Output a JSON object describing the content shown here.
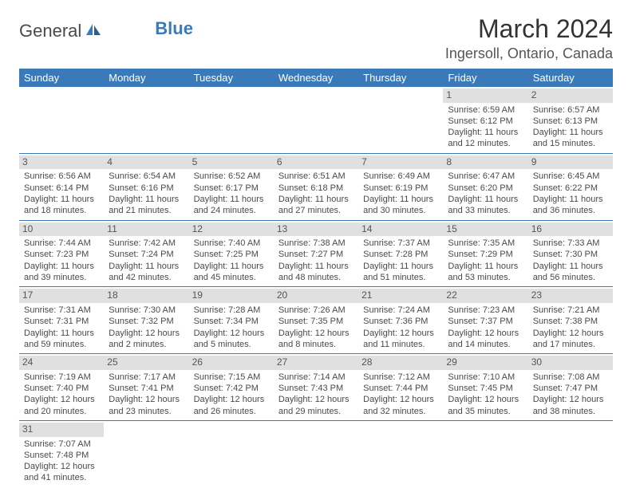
{
  "logo": {
    "part1": "General",
    "part2": "Blue"
  },
  "title": "March 2024",
  "location": "Ingersoll, Ontario, Canada",
  "colors": {
    "header_bg": "#3a7ab8",
    "header_text": "#ffffff",
    "daynum_bg": "#e0e0e0",
    "border": "#3a7ab8",
    "text": "#4a4a4a"
  },
  "day_headers": [
    "Sunday",
    "Monday",
    "Tuesday",
    "Wednesday",
    "Thursday",
    "Friday",
    "Saturday"
  ],
  "weeks": [
    [
      {
        "n": "",
        "sr": "",
        "ss": "",
        "dl": ""
      },
      {
        "n": "",
        "sr": "",
        "ss": "",
        "dl": ""
      },
      {
        "n": "",
        "sr": "",
        "ss": "",
        "dl": ""
      },
      {
        "n": "",
        "sr": "",
        "ss": "",
        "dl": ""
      },
      {
        "n": "",
        "sr": "",
        "ss": "",
        "dl": ""
      },
      {
        "n": "1",
        "sr": "Sunrise: 6:59 AM",
        "ss": "Sunset: 6:12 PM",
        "dl": "Daylight: 11 hours and 12 minutes."
      },
      {
        "n": "2",
        "sr": "Sunrise: 6:57 AM",
        "ss": "Sunset: 6:13 PM",
        "dl": "Daylight: 11 hours and 15 minutes."
      }
    ],
    [
      {
        "n": "3",
        "sr": "Sunrise: 6:56 AM",
        "ss": "Sunset: 6:14 PM",
        "dl": "Daylight: 11 hours and 18 minutes."
      },
      {
        "n": "4",
        "sr": "Sunrise: 6:54 AM",
        "ss": "Sunset: 6:16 PM",
        "dl": "Daylight: 11 hours and 21 minutes."
      },
      {
        "n": "5",
        "sr": "Sunrise: 6:52 AM",
        "ss": "Sunset: 6:17 PM",
        "dl": "Daylight: 11 hours and 24 minutes."
      },
      {
        "n": "6",
        "sr": "Sunrise: 6:51 AM",
        "ss": "Sunset: 6:18 PM",
        "dl": "Daylight: 11 hours and 27 minutes."
      },
      {
        "n": "7",
        "sr": "Sunrise: 6:49 AM",
        "ss": "Sunset: 6:19 PM",
        "dl": "Daylight: 11 hours and 30 minutes."
      },
      {
        "n": "8",
        "sr": "Sunrise: 6:47 AM",
        "ss": "Sunset: 6:20 PM",
        "dl": "Daylight: 11 hours and 33 minutes."
      },
      {
        "n": "9",
        "sr": "Sunrise: 6:45 AM",
        "ss": "Sunset: 6:22 PM",
        "dl": "Daylight: 11 hours and 36 minutes."
      }
    ],
    [
      {
        "n": "10",
        "sr": "Sunrise: 7:44 AM",
        "ss": "Sunset: 7:23 PM",
        "dl": "Daylight: 11 hours and 39 minutes."
      },
      {
        "n": "11",
        "sr": "Sunrise: 7:42 AM",
        "ss": "Sunset: 7:24 PM",
        "dl": "Daylight: 11 hours and 42 minutes."
      },
      {
        "n": "12",
        "sr": "Sunrise: 7:40 AM",
        "ss": "Sunset: 7:25 PM",
        "dl": "Daylight: 11 hours and 45 minutes."
      },
      {
        "n": "13",
        "sr": "Sunrise: 7:38 AM",
        "ss": "Sunset: 7:27 PM",
        "dl": "Daylight: 11 hours and 48 minutes."
      },
      {
        "n": "14",
        "sr": "Sunrise: 7:37 AM",
        "ss": "Sunset: 7:28 PM",
        "dl": "Daylight: 11 hours and 51 minutes."
      },
      {
        "n": "15",
        "sr": "Sunrise: 7:35 AM",
        "ss": "Sunset: 7:29 PM",
        "dl": "Daylight: 11 hours and 53 minutes."
      },
      {
        "n": "16",
        "sr": "Sunrise: 7:33 AM",
        "ss": "Sunset: 7:30 PM",
        "dl": "Daylight: 11 hours and 56 minutes."
      }
    ],
    [
      {
        "n": "17",
        "sr": "Sunrise: 7:31 AM",
        "ss": "Sunset: 7:31 PM",
        "dl": "Daylight: 11 hours and 59 minutes."
      },
      {
        "n": "18",
        "sr": "Sunrise: 7:30 AM",
        "ss": "Sunset: 7:32 PM",
        "dl": "Daylight: 12 hours and 2 minutes."
      },
      {
        "n": "19",
        "sr": "Sunrise: 7:28 AM",
        "ss": "Sunset: 7:34 PM",
        "dl": "Daylight: 12 hours and 5 minutes."
      },
      {
        "n": "20",
        "sr": "Sunrise: 7:26 AM",
        "ss": "Sunset: 7:35 PM",
        "dl": "Daylight: 12 hours and 8 minutes."
      },
      {
        "n": "21",
        "sr": "Sunrise: 7:24 AM",
        "ss": "Sunset: 7:36 PM",
        "dl": "Daylight: 12 hours and 11 minutes."
      },
      {
        "n": "22",
        "sr": "Sunrise: 7:23 AM",
        "ss": "Sunset: 7:37 PM",
        "dl": "Daylight: 12 hours and 14 minutes."
      },
      {
        "n": "23",
        "sr": "Sunrise: 7:21 AM",
        "ss": "Sunset: 7:38 PM",
        "dl": "Daylight: 12 hours and 17 minutes."
      }
    ],
    [
      {
        "n": "24",
        "sr": "Sunrise: 7:19 AM",
        "ss": "Sunset: 7:40 PM",
        "dl": "Daylight: 12 hours and 20 minutes."
      },
      {
        "n": "25",
        "sr": "Sunrise: 7:17 AM",
        "ss": "Sunset: 7:41 PM",
        "dl": "Daylight: 12 hours and 23 minutes."
      },
      {
        "n": "26",
        "sr": "Sunrise: 7:15 AM",
        "ss": "Sunset: 7:42 PM",
        "dl": "Daylight: 12 hours and 26 minutes."
      },
      {
        "n": "27",
        "sr": "Sunrise: 7:14 AM",
        "ss": "Sunset: 7:43 PM",
        "dl": "Daylight: 12 hours and 29 minutes."
      },
      {
        "n": "28",
        "sr": "Sunrise: 7:12 AM",
        "ss": "Sunset: 7:44 PM",
        "dl": "Daylight: 12 hours and 32 minutes."
      },
      {
        "n": "29",
        "sr": "Sunrise: 7:10 AM",
        "ss": "Sunset: 7:45 PM",
        "dl": "Daylight: 12 hours and 35 minutes."
      },
      {
        "n": "30",
        "sr": "Sunrise: 7:08 AM",
        "ss": "Sunset: 7:47 PM",
        "dl": "Daylight: 12 hours and 38 minutes."
      }
    ],
    [
      {
        "n": "31",
        "sr": "Sunrise: 7:07 AM",
        "ss": "Sunset: 7:48 PM",
        "dl": "Daylight: 12 hours and 41 minutes."
      },
      {
        "n": "",
        "sr": "",
        "ss": "",
        "dl": ""
      },
      {
        "n": "",
        "sr": "",
        "ss": "",
        "dl": ""
      },
      {
        "n": "",
        "sr": "",
        "ss": "",
        "dl": ""
      },
      {
        "n": "",
        "sr": "",
        "ss": "",
        "dl": ""
      },
      {
        "n": "",
        "sr": "",
        "ss": "",
        "dl": ""
      },
      {
        "n": "",
        "sr": "",
        "ss": "",
        "dl": ""
      }
    ]
  ]
}
